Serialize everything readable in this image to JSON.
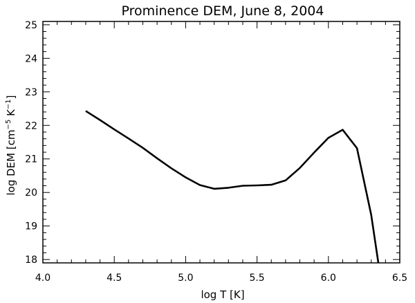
{
  "chart_data": {
    "type": "line",
    "title": "Prominence DEM, June 8, 2004",
    "xlabel": "log T [K]",
    "ylabel": {
      "prefix": "log DEM [cm",
      "exp1": "−5",
      "middle": " K",
      "exp2": "−1",
      "suffix": "]"
    },
    "xlim": [
      4.0,
      6.5
    ],
    "ylim": [
      17.9,
      25.1
    ],
    "xticks": [
      "4.0",
      "4.5",
      "5.0",
      "5.5",
      "6.0",
      "6.5"
    ],
    "yticks": [
      "18",
      "19",
      "20",
      "21",
      "22",
      "23",
      "24",
      "25"
    ],
    "grid": false,
    "series": [
      {
        "x": [
          4.3,
          4.4,
          4.5,
          4.6,
          4.7,
          4.8,
          4.9,
          5.0,
          5.1,
          5.2,
          5.3,
          5.4,
          5.5,
          5.6,
          5.7,
          5.8,
          5.9,
          6.0,
          6.1,
          6.2,
          6.3,
          6.35
        ],
        "y": [
          22.43,
          22.16,
          21.88,
          21.61,
          21.33,
          21.02,
          20.72,
          20.45,
          20.22,
          20.11,
          20.14,
          20.2,
          20.21,
          20.23,
          20.36,
          20.73,
          21.19,
          21.63,
          21.87,
          21.32,
          19.33,
          17.9
        ],
        "color": "#000000"
      }
    ]
  }
}
